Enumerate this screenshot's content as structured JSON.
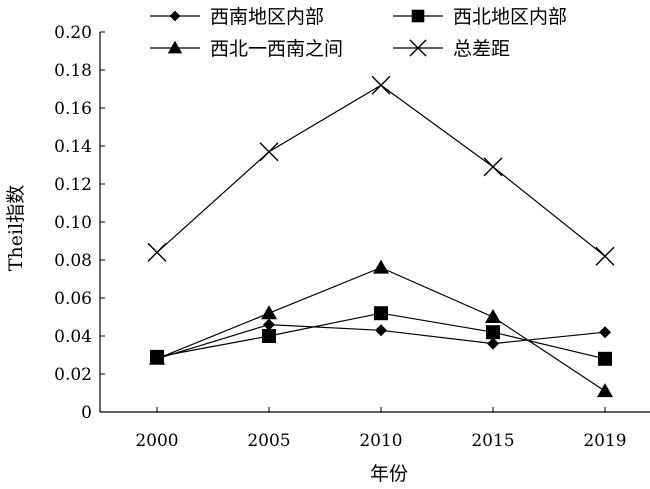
{
  "chart_data": {
    "type": "line",
    "xlabel": "年份",
    "ylabel": "Theil指数",
    "categories": [
      "2000",
      "2005",
      "2010",
      "2015",
      "2019"
    ],
    "ylim": [
      0,
      0.2
    ],
    "yticks": [
      "0",
      "0.02",
      "0.04",
      "0.06",
      "0.08",
      "0.10",
      "0.12",
      "0.14",
      "0.16",
      "0.18",
      "0.20"
    ],
    "grid": false,
    "legend_position": "top",
    "series": [
      {
        "name": "西南地区内部",
        "marker": "diamond",
        "values": [
          0.028,
          0.046,
          0.043,
          0.036,
          0.042
        ]
      },
      {
        "name": "西北地区内部",
        "marker": "square",
        "values": [
          0.029,
          0.04,
          0.052,
          0.042,
          0.028
        ]
      },
      {
        "name": "西北一西南之间",
        "marker": "triangle",
        "values": [
          0.028,
          0.052,
          0.076,
          0.05,
          0.011
        ]
      },
      {
        "name": "总差距",
        "marker": "x",
        "values": [
          0.084,
          0.137,
          0.172,
          0.129,
          0.082
        ]
      }
    ],
    "line_color": "#000000"
  }
}
